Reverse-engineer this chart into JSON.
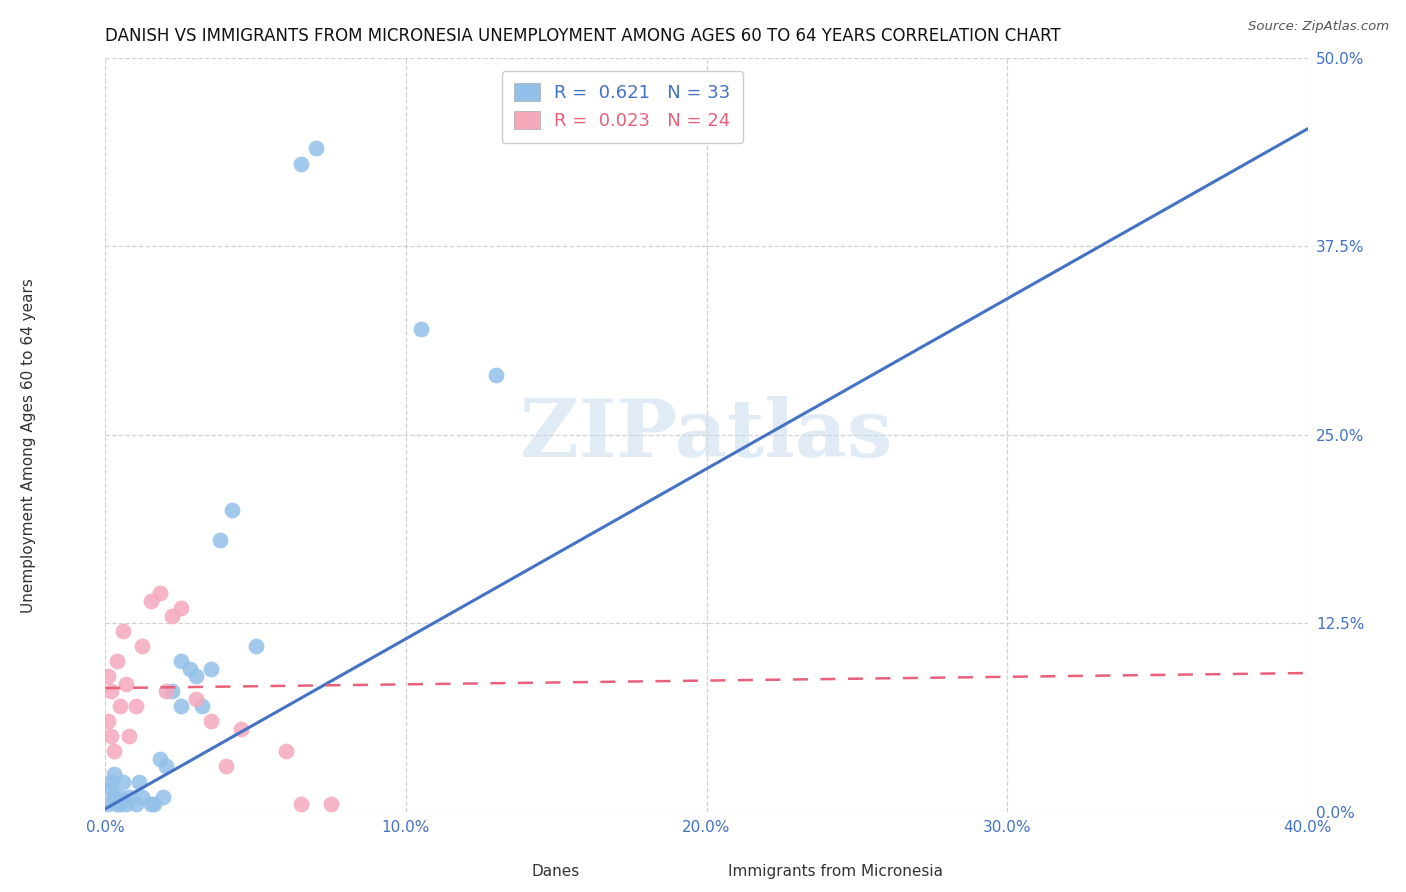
{
  "title": "DANISH VS IMMIGRANTS FROM MICRONESIA UNEMPLOYMENT AMONG AGES 60 TO 64 YEARS CORRELATION CHART",
  "source": "Source: ZipAtlas.com",
  "ylabel": "Unemployment Among Ages 60 to 64 years",
  "xlabel_ticks": [
    "0.0%",
    "10.0%",
    "20.0%",
    "30.0%",
    "40.0%"
  ],
  "xlabel_vals": [
    0.0,
    0.1,
    0.2,
    0.3,
    0.4
  ],
  "ylabel_ticks": [
    "0.0%",
    "12.5%",
    "25.0%",
    "37.5%",
    "50.0%"
  ],
  "ylabel_vals": [
    0.0,
    0.125,
    0.25,
    0.375,
    0.5
  ],
  "xlim": [
    0.0,
    0.4
  ],
  "ylim": [
    0.0,
    0.5
  ],
  "danes_R": 0.621,
  "danes_N": 33,
  "immigrants_R": 0.023,
  "immigrants_N": 24,
  "danes_color": "#92C0E8",
  "immigrants_color": "#F4A8BC",
  "danes_line_color": "#4472C4",
  "immigrants_line_color": "#E8607A",
  "background_color": "#FFFFFF",
  "grid_color": "#CCCCCC",
  "danes_x": [
    0.001,
    0.002,
    0.002,
    0.003,
    0.003,
    0.004,
    0.005,
    0.005,
    0.006,
    0.007,
    0.008,
    0.01,
    0.011,
    0.012,
    0.015,
    0.016,
    0.018,
    0.019,
    0.02,
    0.022,
    0.025,
    0.025,
    0.028,
    0.03,
    0.032,
    0.035,
    0.038,
    0.042,
    0.05,
    0.065,
    0.07,
    0.105,
    0.13
  ],
  "danes_y": [
    0.005,
    0.015,
    0.02,
    0.01,
    0.025,
    0.005,
    0.01,
    0.005,
    0.02,
    0.005,
    0.01,
    0.005,
    0.02,
    0.01,
    0.005,
    0.005,
    0.035,
    0.01,
    0.03,
    0.08,
    0.07,
    0.1,
    0.095,
    0.09,
    0.07,
    0.095,
    0.18,
    0.2,
    0.11,
    0.43,
    0.44,
    0.32,
    0.29
  ],
  "immigrants_x": [
    0.001,
    0.001,
    0.002,
    0.002,
    0.003,
    0.004,
    0.005,
    0.006,
    0.007,
    0.008,
    0.01,
    0.012,
    0.015,
    0.018,
    0.02,
    0.022,
    0.025,
    0.03,
    0.035,
    0.04,
    0.045,
    0.06,
    0.065,
    0.075
  ],
  "immigrants_y": [
    0.06,
    0.09,
    0.05,
    0.08,
    0.04,
    0.1,
    0.07,
    0.12,
    0.085,
    0.05,
    0.07,
    0.11,
    0.14,
    0.145,
    0.08,
    0.13,
    0.135,
    0.075,
    0.06,
    0.03,
    0.055,
    0.04,
    0.005,
    0.005
  ],
  "danes_line_x": [
    0.0,
    0.4
  ],
  "danes_line_y": [
    0.002,
    0.453
  ],
  "imm_line_x": [
    0.0,
    0.4
  ],
  "imm_line_y": [
    0.082,
    0.092
  ]
}
